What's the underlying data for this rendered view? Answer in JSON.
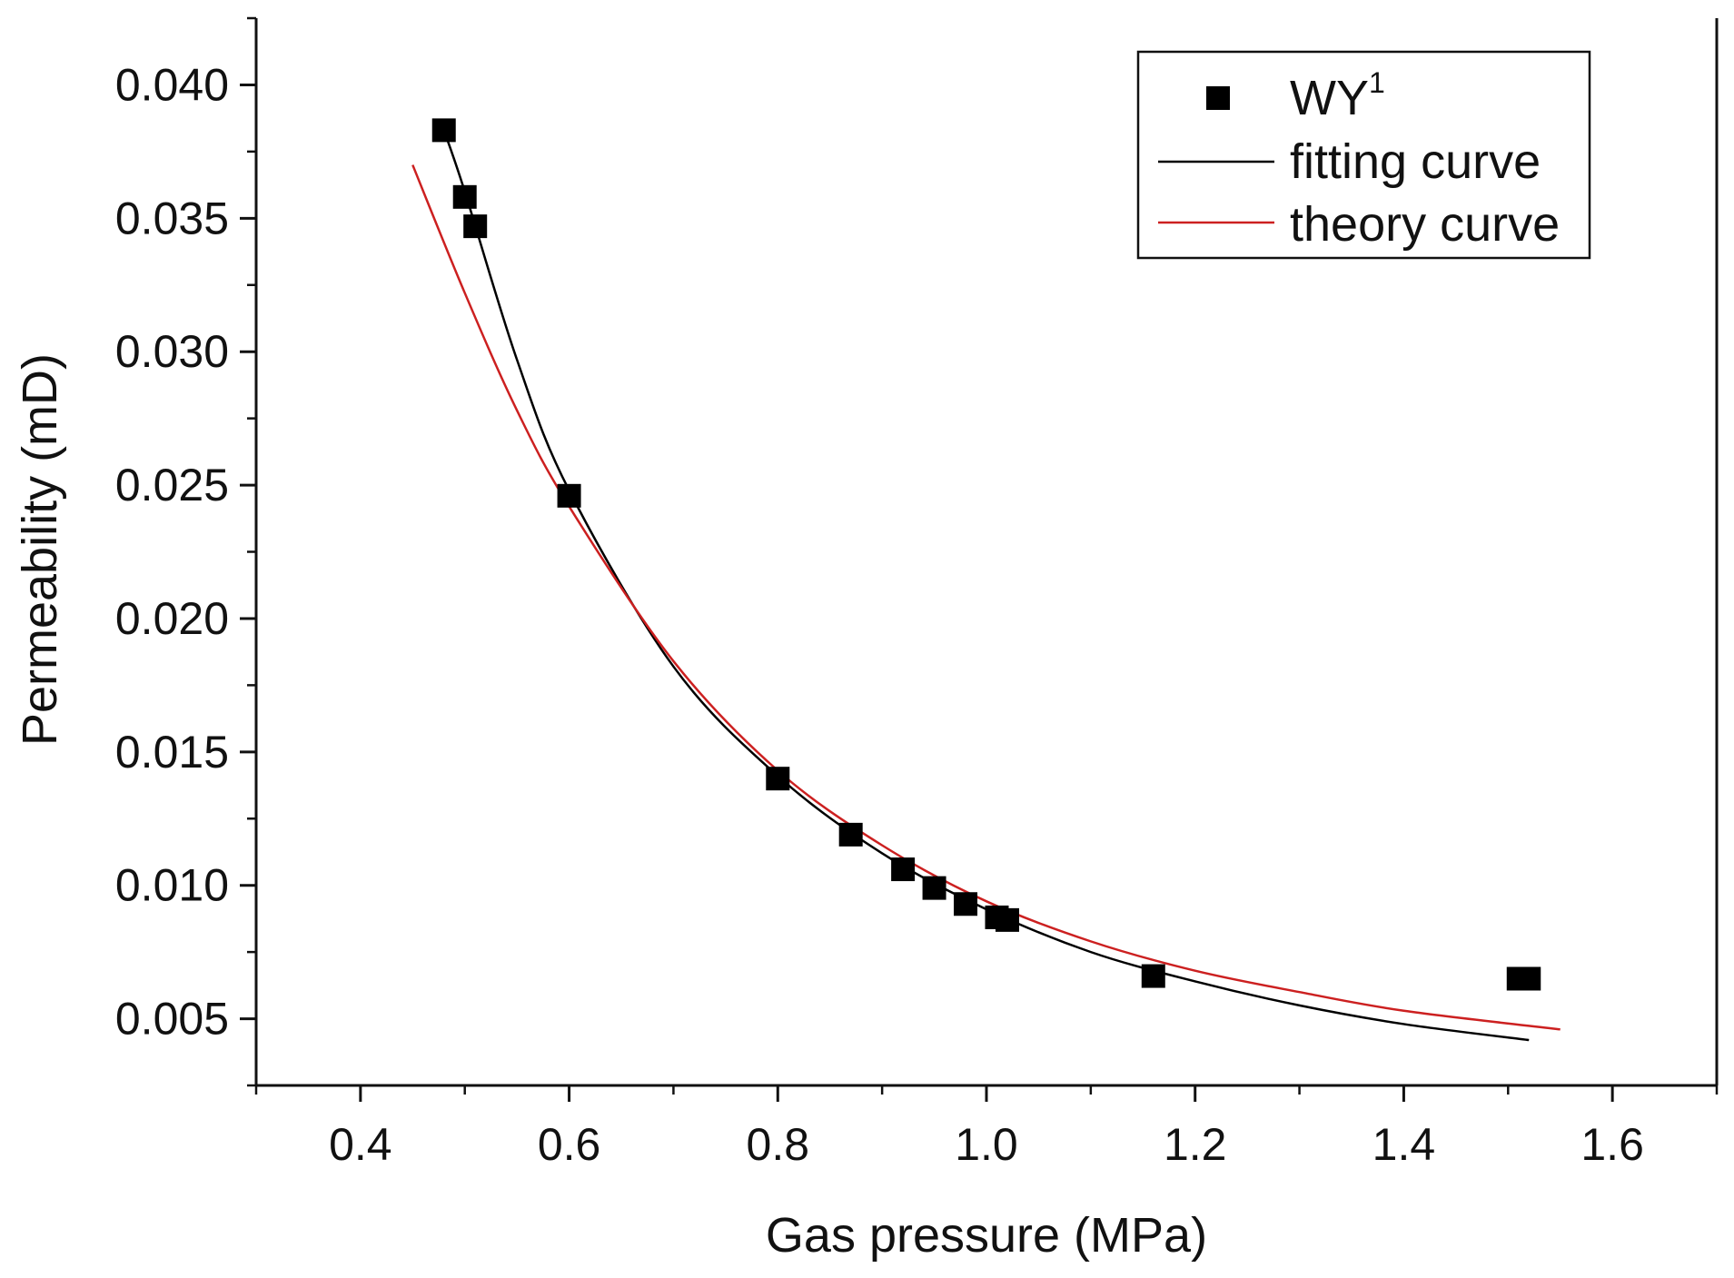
{
  "chart_data": {
    "type": "scatter",
    "xlabel": "Gas pressure (MPa)",
    "ylabel": "Permeability (mD)",
    "xlim": [
      0.3,
      1.7
    ],
    "ylim": [
      0.0025,
      0.0425
    ],
    "x_ticks": [
      "0.4",
      "0.6",
      "0.8",
      "1.0",
      "1.2",
      "1.4",
      "1.6"
    ],
    "x_tick_values": [
      0.4,
      0.6,
      0.8,
      1.0,
      1.2,
      1.4,
      1.6
    ],
    "y_ticks": [
      "0.005",
      "0.010",
      "0.015",
      "0.020",
      "0.025",
      "0.030",
      "0.035",
      "0.040"
    ],
    "y_tick_values": [
      0.005,
      0.01,
      0.015,
      0.02,
      0.025,
      0.03,
      0.035,
      0.04
    ],
    "legend_position": "top-right",
    "grid": false,
    "series": [
      {
        "name": "WY",
        "name_superscript": "1",
        "kind": "scatter",
        "marker": "square",
        "color": "#000000",
        "points": [
          {
            "x": 0.48,
            "y": 0.0383
          },
          {
            "x": 0.5,
            "y": 0.0358
          },
          {
            "x": 0.51,
            "y": 0.0347
          },
          {
            "x": 0.6,
            "y": 0.0246
          },
          {
            "x": 0.8,
            "y": 0.014
          },
          {
            "x": 0.87,
            "y": 0.0119
          },
          {
            "x": 0.92,
            "y": 0.0106
          },
          {
            "x": 0.95,
            "y": 0.0099
          },
          {
            "x": 0.98,
            "y": 0.0093
          },
          {
            "x": 1.01,
            "y": 0.0088
          },
          {
            "x": 1.02,
            "y": 0.0087
          },
          {
            "x": 1.16,
            "y": 0.0066
          },
          {
            "x": 1.51,
            "y": 0.0065
          },
          {
            "x": 1.52,
            "y": 0.0065
          }
        ]
      },
      {
        "name": "fitting curve",
        "kind": "line",
        "color": "#000000",
        "points": [
          {
            "x": 0.48,
            "y": 0.0383
          },
          {
            "x": 0.5,
            "y": 0.036
          },
          {
            "x": 0.55,
            "y": 0.0297
          },
          {
            "x": 0.6,
            "y": 0.0248
          },
          {
            "x": 0.7,
            "y": 0.0182
          },
          {
            "x": 0.8,
            "y": 0.0141
          },
          {
            "x": 0.9,
            "y": 0.0112
          },
          {
            "x": 1.0,
            "y": 0.0091
          },
          {
            "x": 1.1,
            "y": 0.0075
          },
          {
            "x": 1.2,
            "y": 0.0064
          },
          {
            "x": 1.3,
            "y": 0.0055
          },
          {
            "x": 1.4,
            "y": 0.0048
          },
          {
            "x": 1.52,
            "y": 0.0042
          }
        ]
      },
      {
        "name": "theory curve",
        "kind": "line",
        "color": "#cc2020",
        "points": [
          {
            "x": 0.45,
            "y": 0.037
          },
          {
            "x": 0.5,
            "y": 0.0322
          },
          {
            "x": 0.55,
            "y": 0.0278
          },
          {
            "x": 0.6,
            "y": 0.0242
          },
          {
            "x": 0.7,
            "y": 0.0184
          },
          {
            "x": 0.8,
            "y": 0.0143
          },
          {
            "x": 0.9,
            "y": 0.0115
          },
          {
            "x": 1.0,
            "y": 0.0094
          },
          {
            "x": 1.1,
            "y": 0.0079
          },
          {
            "x": 1.2,
            "y": 0.0068
          },
          {
            "x": 1.3,
            "y": 0.006
          },
          {
            "x": 1.4,
            "y": 0.0053
          },
          {
            "x": 1.55,
            "y": 0.0046
          }
        ]
      }
    ]
  }
}
